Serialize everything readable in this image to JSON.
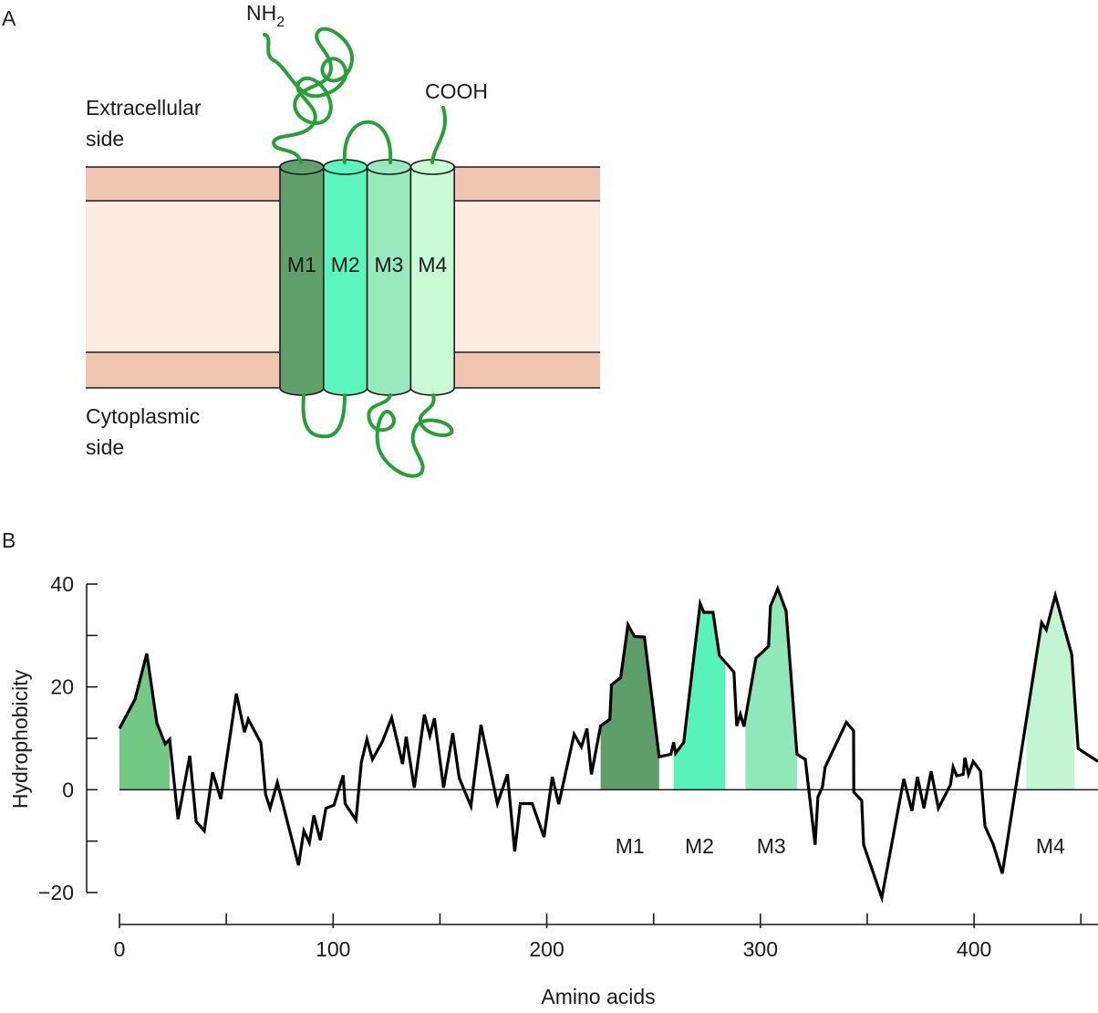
{
  "panel_a": {
    "letter": "A",
    "nh2": {
      "text": "NH",
      "subscript": "2"
    },
    "cooh": "COOH",
    "extracellular": [
      "Extracellular",
      "side"
    ],
    "cytoplasmic": [
      "Cytoplasmic",
      "side"
    ],
    "helices": [
      {
        "label": "M1",
        "color": "#62a06b"
      },
      {
        "label": "M2",
        "color": "#5cf5c0"
      },
      {
        "label": "M3",
        "color": "#98e9be"
      },
      {
        "label": "M4",
        "color": "#c9fbd5"
      }
    ]
  },
  "panel_b": {
    "letter": "B"
  },
  "chart_data": {
    "type": "line",
    "ylabel": "Hydrophobicity",
    "xlabel": "Amino acids",
    "color": "#000000",
    "xlim": [
      0,
      458
    ],
    "ylim": [
      -20,
      40
    ],
    "xticks": [
      0,
      100,
      200,
      300,
      400
    ],
    "xminor_ticks": [
      50,
      150,
      250,
      350,
      450
    ],
    "yticks": [
      {
        "value": -20,
        "label": "−20"
      },
      0,
      20,
      40
    ],
    "yminor_ticks": [
      -10,
      10,
      30
    ],
    "x": [
      0,
      7.3,
      12.8,
      17.5,
      21.4,
      23.5,
      27.4,
      32.9,
      35.9,
      39.7,
      43.6,
      47.4,
      54.7,
      58.5,
      60.3,
      66.2,
      68.4,
      70.5,
      73.9,
      83.8,
      86.3,
      88.9,
      91,
      94,
      96.6,
      100.4,
      104.7,
      105.6,
      110.7,
      113.2,
      115.8,
      118.4,
      123.1,
      127.4,
      132.5,
      134.2,
      138,
      142.7,
      145.3,
      147.4,
      151.7,
      156,
      159,
      164.5,
      169.2,
      176.9,
      181.6,
      185,
      187.6,
      193.2,
      198.7,
      202.6,
      205.6,
      212.8,
      216.2,
      218.8,
      220.9,
      225.2,
      229.5,
      230.3,
      234.6,
      238,
      241,
      245.7,
      252.6,
      258.1,
      259.4,
      260.3,
      264.1,
      271.8,
      273.5,
      277.8,
      280.8,
      287.6,
      288.9,
      290.6,
      292.3,
      297.9,
      303.8,
      304.7,
      308.1,
      312,
      317.1,
      321,
      325.6,
      326.9,
      329,
      330.3,
      340.2,
      343.6,
      343.7,
      347.4,
      348.3,
      356.8,
      367.1,
      370.9,
      373.5,
      376.5,
      379.9,
      383.3,
      388.9,
      390.2,
      391.9,
      394.9,
      395.7,
      397.4,
      399.6,
      403,
      405.1,
      409,
      413.2,
      431.6,
      433.8,
      438,
      445.7,
      448.7,
      458
    ],
    "values": [
      11.9,
      17.6,
      26.5,
      13,
      8.9,
      9.8,
      -5.7,
      6.6,
      -6.2,
      -8,
      3.4,
      -1.8,
      18.7,
      11.2,
      13.7,
      9.1,
      -0.9,
      -3.6,
      1.4,
      -14.7,
      -8,
      -10.3,
      -5,
      -9.8,
      -3.6,
      -3,
      2.8,
      -2.7,
      -5.9,
      5.3,
      9.8,
      5.9,
      9.4,
      14,
      5,
      10.3,
      0.4,
      14.6,
      10.5,
      13.9,
      0.4,
      11,
      2.3,
      -3.2,
      12.6,
      -2.7,
      3,
      -12,
      -2.7,
      -2.7,
      -9.2,
      2.5,
      -2.8,
      10.8,
      8.3,
      11.9,
      3,
      12.4,
      13.7,
      20.4,
      21.8,
      32.1,
      29.8,
      29.7,
      6.4,
      6.9,
      9.2,
      7.1,
      9.2,
      36.2,
      34.5,
      34.5,
      26.1,
      22.9,
      12.4,
      14.7,
      12.3,
      25.6,
      27.9,
      35.7,
      39.1,
      34.8,
      6.9,
      5.9,
      -10.7,
      -1.4,
      0.5,
      4.4,
      13.1,
      11.5,
      -0.5,
      -2.1,
      -10.7,
      -21,
      2.1,
      -4.1,
      2.5,
      -3.6,
      3.6,
      -3.6,
      0.9,
      4.4,
      2.7,
      3,
      6.2,
      3,
      5.5,
      3.6,
      -7.1,
      -10.7,
      -16.3,
      32.5,
      31.1,
      37.8,
      26.3,
      8,
      5.5
    ],
    "regions": [
      {
        "label": null,
        "start": 0,
        "end": 23.5,
        "color": "#72c985"
      },
      {
        "label": "M1",
        "start": 225.2,
        "end": 252.6,
        "color": "#5e9e6b"
      },
      {
        "label": "M2",
        "start": 259.4,
        "end": 283.5,
        "color": "#5af2bc"
      },
      {
        "label": "M3",
        "start": 293,
        "end": 317.1,
        "color": "#90e8b8"
      },
      {
        "label": "M4",
        "start": 424.5,
        "end": 447,
        "color": "#c4f5d2"
      }
    ]
  }
}
